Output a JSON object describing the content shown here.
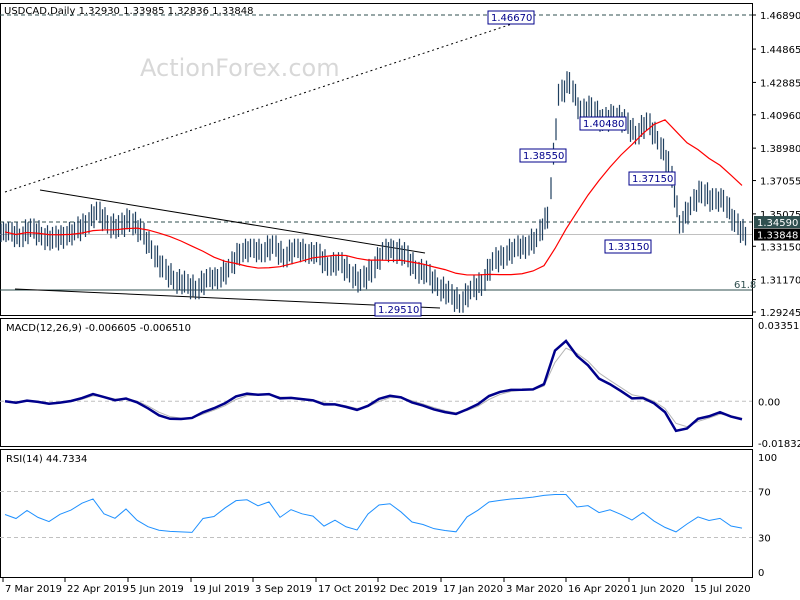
{
  "chart_data": [
    {
      "type": "bar",
      "title": "USDCAD,Daily",
      "ohlc_readout": "1.32930 1.33985 1.32836 1.33848",
      "watermark": "ActionForex.com",
      "x_tick_labels": [
        "7 Mar 2019",
        "22 Apr 2019",
        "5 Jun 2019",
        "19 Jul 2019",
        "3 Sep 2019",
        "17 Oct 2019",
        "2 Dec 2019",
        "17 Jan 2020",
        "3 Mar 2020",
        "16 Apr 2020",
        "1 Jun 2020",
        "15 Jul 2020"
      ],
      "y_tick_labels": [
        "1.46890",
        "1.44865",
        "1.42885",
        "1.40960",
        "1.38980",
        "1.37055",
        "1.35075",
        "1.33150",
        "1.31170",
        "1.29245"
      ],
      "ylim": [
        1.29245,
        1.4689
      ],
      "current_price": "1.33848",
      "highlight_level": "1.34590",
      "fib_label": "61.8",
      "annotations": [
        "1.46670",
        "1.40480",
        "1.38550",
        "1.37150",
        "1.33150",
        "1.29510"
      ],
      "series": [
        {
          "kind": "ohlc-bars",
          "approx_weekly_close": [
            1.34,
            1.337,
            1.342,
            1.338,
            1.335,
            1.338,
            1.34,
            1.345,
            1.352,
            1.345,
            1.342,
            1.348,
            1.34,
            1.33,
            1.318,
            1.312,
            1.309,
            1.306,
            1.312,
            1.313,
            1.318,
            1.328,
            1.33,
            1.328,
            1.332,
            1.325,
            1.33,
            1.328,
            1.327,
            1.32,
            1.322,
            1.316,
            1.31,
            1.318,
            1.328,
            1.33,
            1.326,
            1.318,
            1.315,
            1.308,
            1.303,
            1.298,
            1.305,
            1.31,
            1.322,
            1.326,
            1.33,
            1.332,
            1.336,
            1.35,
            1.42,
            1.43,
            1.41,
            1.415,
            1.405,
            1.41,
            1.405,
            1.398,
            1.405,
            1.395,
            1.38,
            1.345,
            1.355,
            1.365,
            1.358,
            1.36,
            1.345,
            1.338
          ]
        },
        {
          "kind": "moving-average",
          "color": "#ff0000"
        }
      ],
      "grid": false
    },
    {
      "type": "line",
      "title": "MACD(12,26,9) -0.006605 -0.006510",
      "y_tick_labels": [
        "0.033515",
        "0.00",
        "-0.018324"
      ],
      "ylim": [
        -0.018324,
        0.033515
      ],
      "colors": {
        "macd": "#00008b",
        "signal": "#b4b4b4"
      }
    },
    {
      "type": "line",
      "title": "RSI(14) 44.7334",
      "y_tick_labels": [
        "100",
        "70",
        "30",
        "0"
      ],
      "ylim": [
        0,
        100
      ],
      "levels": [
        70,
        30
      ],
      "colors": {
        "rsi": "#1e90ff"
      }
    }
  ]
}
